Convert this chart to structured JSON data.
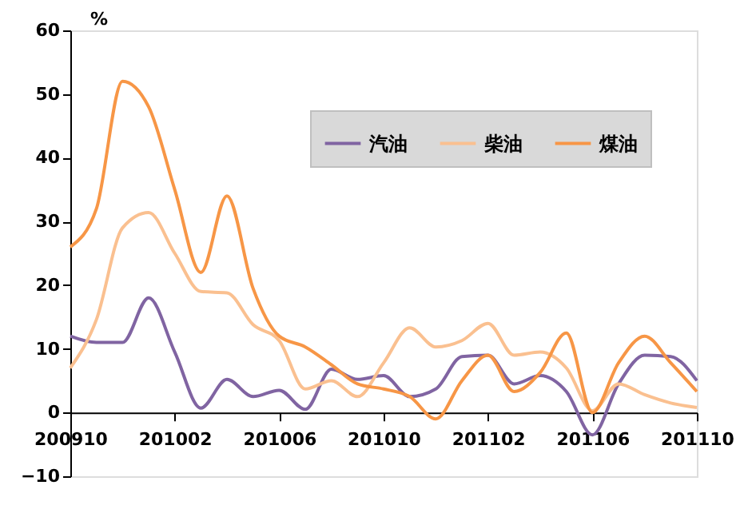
{
  "chart_data": {
    "type": "line",
    "ylabel": "%",
    "categories": [
      "200910",
      null,
      null,
      null,
      "201002",
      null,
      null,
      null,
      "201006",
      null,
      null,
      null,
      "201010",
      null,
      null,
      null,
      "201102",
      null,
      null,
      null,
      "201106",
      null,
      null,
      null,
      "201110"
    ],
    "series": [
      {
        "name": "汽油",
        "color": "#8064a2",
        "values": [
          12,
          11,
          11,
          18,
          9.5,
          0.7,
          5.2,
          2.5,
          3.5,
          0.5,
          6.8,
          5.2,
          5.8,
          2.5,
          3.7,
          8.8,
          9,
          4.5,
          5.8,
          3.3,
          -3.5,
          4.5,
          9,
          8.8,
          5
        ]
      },
      {
        "name": "柴油",
        "color": "#fac090",
        "values": [
          7,
          14.6,
          29,
          31.4,
          25,
          19,
          18.8,
          13.8,
          11.3,
          3.7,
          5,
          2.5,
          7.8,
          13.3,
          10.3,
          11.3,
          14,
          9,
          9.5,
          7,
          0.3,
          4.5,
          2.8,
          1.5,
          0.8
        ]
      },
      {
        "name": "煤油",
        "color": "#f79646",
        "values": [
          26,
          32,
          52,
          48,
          35,
          22,
          34,
          19.5,
          12,
          10.3,
          7.5,
          4.5,
          3.7,
          2.5,
          -1,
          5,
          9,
          3.3,
          6.3,
          12.5,
          0,
          7.8,
          12,
          7.8,
          3.3
        ]
      }
    ],
    "ylim": [
      -10,
      60
    ],
    "yticks": [
      -10,
      0,
      10,
      20,
      30,
      40,
      50,
      60
    ],
    "grid": false,
    "legend": "top right",
    "marker": "none",
    "line_style": "solid"
  }
}
